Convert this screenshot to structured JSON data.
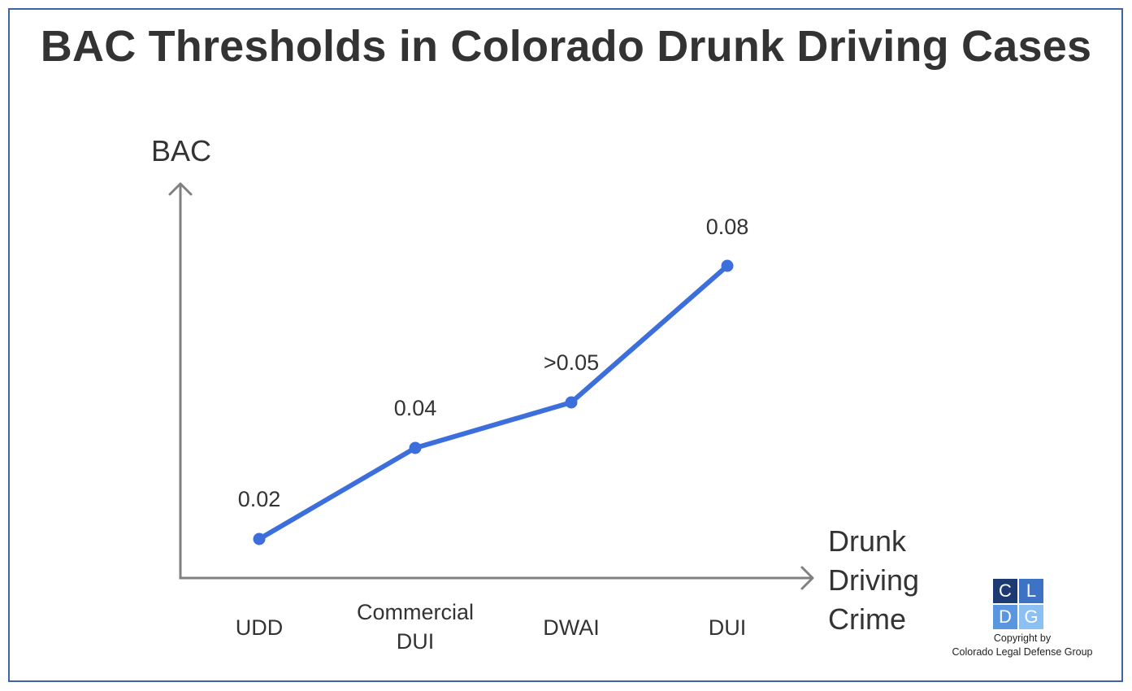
{
  "title": "BAC Thresholds in Colorado Drunk Driving Cases",
  "chart_data": {
    "type": "line",
    "title": "BAC Thresholds in Colorado Drunk Driving Cases",
    "ylabel": "BAC",
    "xlabel_lines": [
      "Drunk",
      "Driving",
      "Crime"
    ],
    "categories": [
      {
        "lines": [
          "UDD"
        ]
      },
      {
        "lines": [
          "Commercial",
          "DUI"
        ]
      },
      {
        "lines": [
          "DWAI"
        ]
      },
      {
        "lines": [
          "DUI"
        ]
      }
    ],
    "values": [
      0.02,
      0.04,
      0.05,
      0.08
    ],
    "data_labels": [
      "0.02",
      "0.04",
      ">0.05",
      "0.08"
    ],
    "ylim": [
      0,
      0.1
    ],
    "grid": false,
    "legend": "none",
    "line_color": "#3d6fdc",
    "axis_color": "#808080"
  },
  "logo": {
    "letters": [
      "C",
      "L",
      "D",
      "G"
    ],
    "colors": [
      "#1e3a73",
      "#3e72c4",
      "#5a95df",
      "#8cc0f2"
    ],
    "copyright_line1": "Copyright by",
    "copyright_line2": "Colorado Legal Defense Group"
  }
}
